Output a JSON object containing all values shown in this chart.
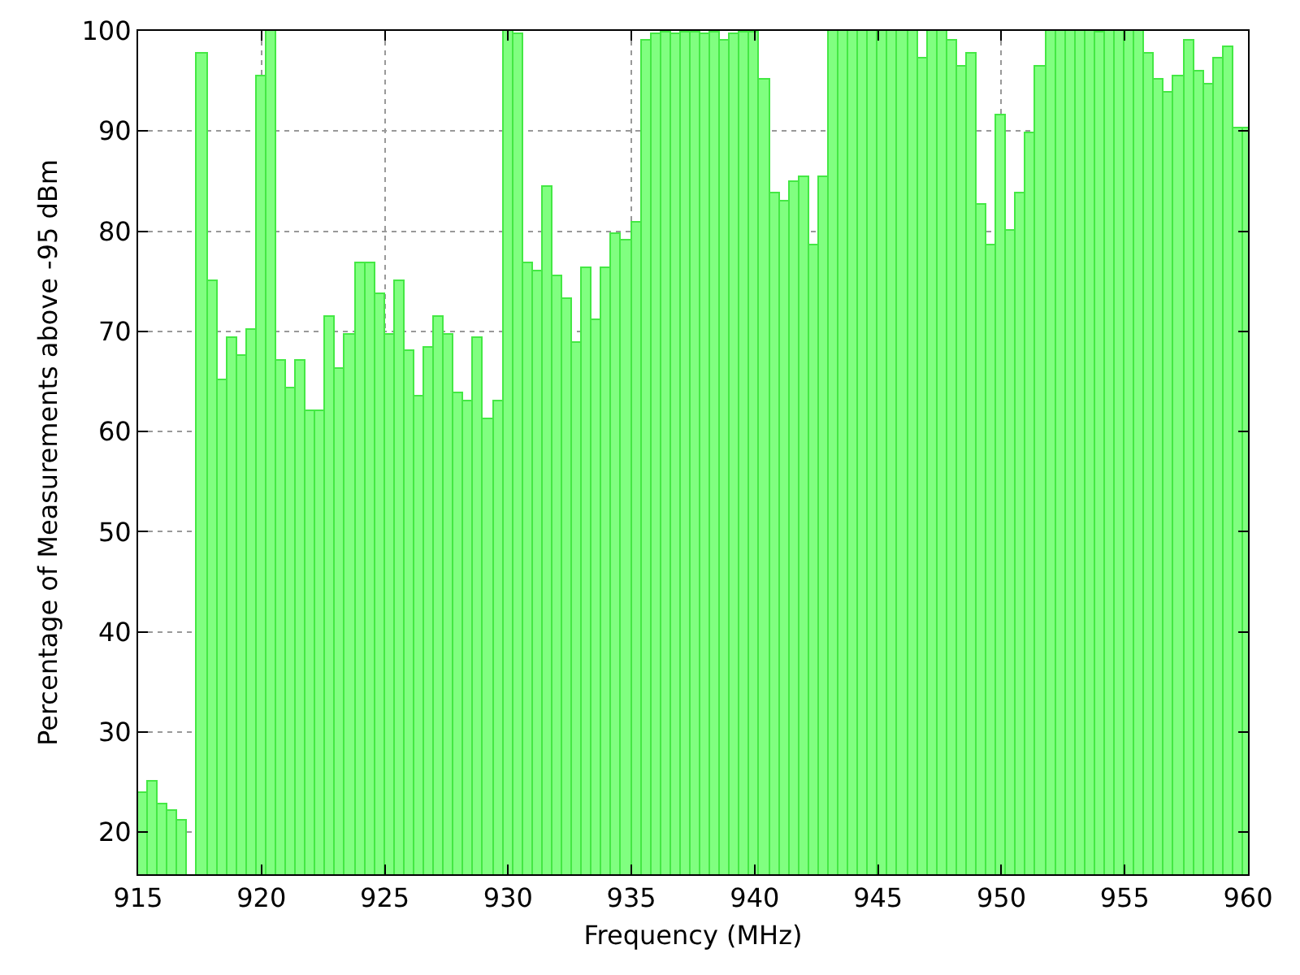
{
  "chart_data": {
    "type": "bar",
    "xlabel": "Frequency (MHz)",
    "ylabel": "Percentage of Measurements above -95 dBm",
    "x": [
      915.2,
      915.6,
      916,
      916.4,
      916.8,
      917.2,
      917.6,
      918,
      918.4,
      918.8,
      919.2,
      919.6,
      920,
      920.4,
      920.8,
      921.2,
      921.6,
      922,
      922.4,
      922.8,
      923.2,
      923.6,
      924,
      924.4,
      924.8,
      925.2,
      925.6,
      926,
      926.4,
      926.8,
      927.2,
      927.6,
      928,
      928.4,
      928.8,
      929.2,
      929.6,
      930,
      930.4,
      930.8,
      931.2,
      931.6,
      932,
      932.4,
      932.8,
      933.2,
      933.6,
      934,
      934.4,
      934.8,
      935.2,
      935.6,
      936,
      936.4,
      936.8,
      937.2,
      937.6,
      938,
      938.4,
      938.8,
      939.2,
      939.6,
      940,
      940.4,
      940.8,
      941.2,
      941.6,
      942,
      942.4,
      942.8,
      943.2,
      943.6,
      944,
      944.4,
      944.8,
      945.2,
      945.6,
      946,
      946.4,
      946.8,
      947.2,
      947.6,
      948,
      948.4,
      948.8,
      949.2,
      949.6,
      950,
      950.4,
      950.8,
      951.2,
      951.6,
      952,
      952.4,
      952.8,
      953.2,
      953.6,
      954,
      954.4,
      954.8,
      955.2,
      955.6,
      956,
      956.4,
      956.8,
      957.2,
      957.6,
      958,
      958.4,
      958.8,
      959.2,
      959.6,
      960
    ],
    "values": [
      23.9,
      25.1,
      22.8,
      22.1,
      21.1,
      null,
      97.8,
      75.0,
      65.2,
      69.3,
      67.6,
      70.1,
      95.5,
      100,
      67.0,
      64.3,
      67.0,
      62.1,
      62.1,
      71.4,
      66.2,
      69.7,
      76.8,
      76.8,
      73.7,
      69.7,
      75.0,
      68.0,
      63.5,
      68.3,
      71.4,
      69.7,
      63.8,
      63.0,
      69.3,
      61.3,
      63.0,
      100,
      99.7,
      76.8,
      76.0,
      84.4,
      75.5,
      73.2,
      68.9,
      76.3,
      71.2,
      76.3,
      79.8,
      79.1,
      80.9,
      99.1,
      99.7,
      99.8,
      99.7,
      99.8,
      99.8,
      99.7,
      99.9,
      99.1,
      99.7,
      99.8,
      99.8,
      95.2,
      83.7,
      83.0,
      84.9,
      85.4,
      78.6,
      85.4,
      100,
      100,
      100,
      100,
      100,
      100,
      100,
      100,
      100,
      97.3,
      100,
      100,
      99.1,
      96.5,
      97.8,
      82.6,
      78.6,
      91.6,
      80.0,
      83.7,
      89.8,
      96.5,
      100,
      100,
      100,
      100,
      100,
      99.8,
      100,
      100,
      100,
      100,
      97.8,
      95.2,
      93.8,
      95.5,
      99.1,
      96.0,
      94.7,
      97.3,
      98.3,
      90.2,
      90.2
    ],
    "color": "#80ff80",
    "xlim": [
      915,
      960
    ],
    "xticks": [
      915,
      920,
      925,
      930,
      935,
      940,
      945,
      950,
      955,
      960
    ],
    "ylim": [
      15.8,
      100
    ],
    "yticks": [
      20,
      30,
      40,
      50,
      60,
      70,
      80,
      90,
      100
    ],
    "grid": true
  }
}
